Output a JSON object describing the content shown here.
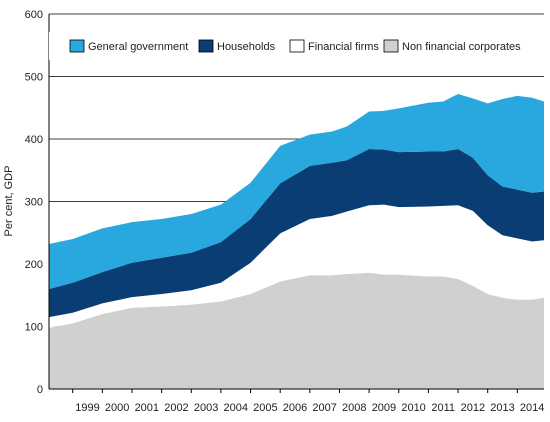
{
  "chart_data": {
    "type": "area",
    "stacked": true,
    "ylabel": "Per cent, GDP",
    "ylim": [
      0,
      600
    ],
    "yticks": [
      0,
      100,
      200,
      300,
      400,
      500,
      600
    ],
    "x_tick_labels": [
      "1999",
      "2000",
      "2001",
      "2002",
      "2003",
      "2004",
      "2005",
      "2006",
      "2007",
      "2008",
      "2009",
      "2010",
      "2011",
      "2012",
      "2013",
      "2014"
    ],
    "x_range": [
      1998.2,
      2014.9
    ],
    "grid": "horizontal",
    "legend_position": "top",
    "x": [
      1998.2,
      1999,
      2000,
      2001,
      2002,
      2003,
      2004,
      2005,
      2006,
      2007,
      2007.75,
      2008.25,
      2009,
      2009.5,
      2010,
      2011,
      2011.5,
      2012,
      2012.5,
      2013,
      2013.5,
      2014,
      2014.5,
      2014.9
    ],
    "series": [
      {
        "name": "Non financial corporates",
        "color": "#d0d0d0",
        "values": [
          98,
          105,
          120,
          130,
          132,
          135,
          140,
          152,
          172,
          182,
          182,
          184,
          186,
          183,
          183,
          180,
          180,
          176,
          165,
          152,
          146,
          143,
          143,
          146
        ]
      },
      {
        "name": "Financial firms",
        "color": "#ffffff",
        "values": [
          17,
          17,
          17,
          17,
          20,
          23,
          30,
          50,
          77,
          90,
          95,
          100,
          108,
          112,
          108,
          112,
          113,
          118,
          120,
          110,
          100,
          98,
          93,
          92
        ]
      },
      {
        "name": "Households",
        "color": "#0b3d75",
        "values": [
          45,
          48,
          50,
          55,
          58,
          60,
          65,
          70,
          80,
          85,
          85,
          82,
          90,
          88,
          88,
          88,
          87,
          90,
          85,
          80,
          78,
          78,
          78,
          78
        ]
      },
      {
        "name": "General government",
        "color": "#29a8e0",
        "values": [
          72,
          70,
          70,
          65,
          62,
          62,
          60,
          58,
          60,
          50,
          50,
          54,
          60,
          62,
          70,
          78,
          80,
          88,
          95,
          115,
          140,
          150,
          152,
          144
        ]
      }
    ]
  }
}
